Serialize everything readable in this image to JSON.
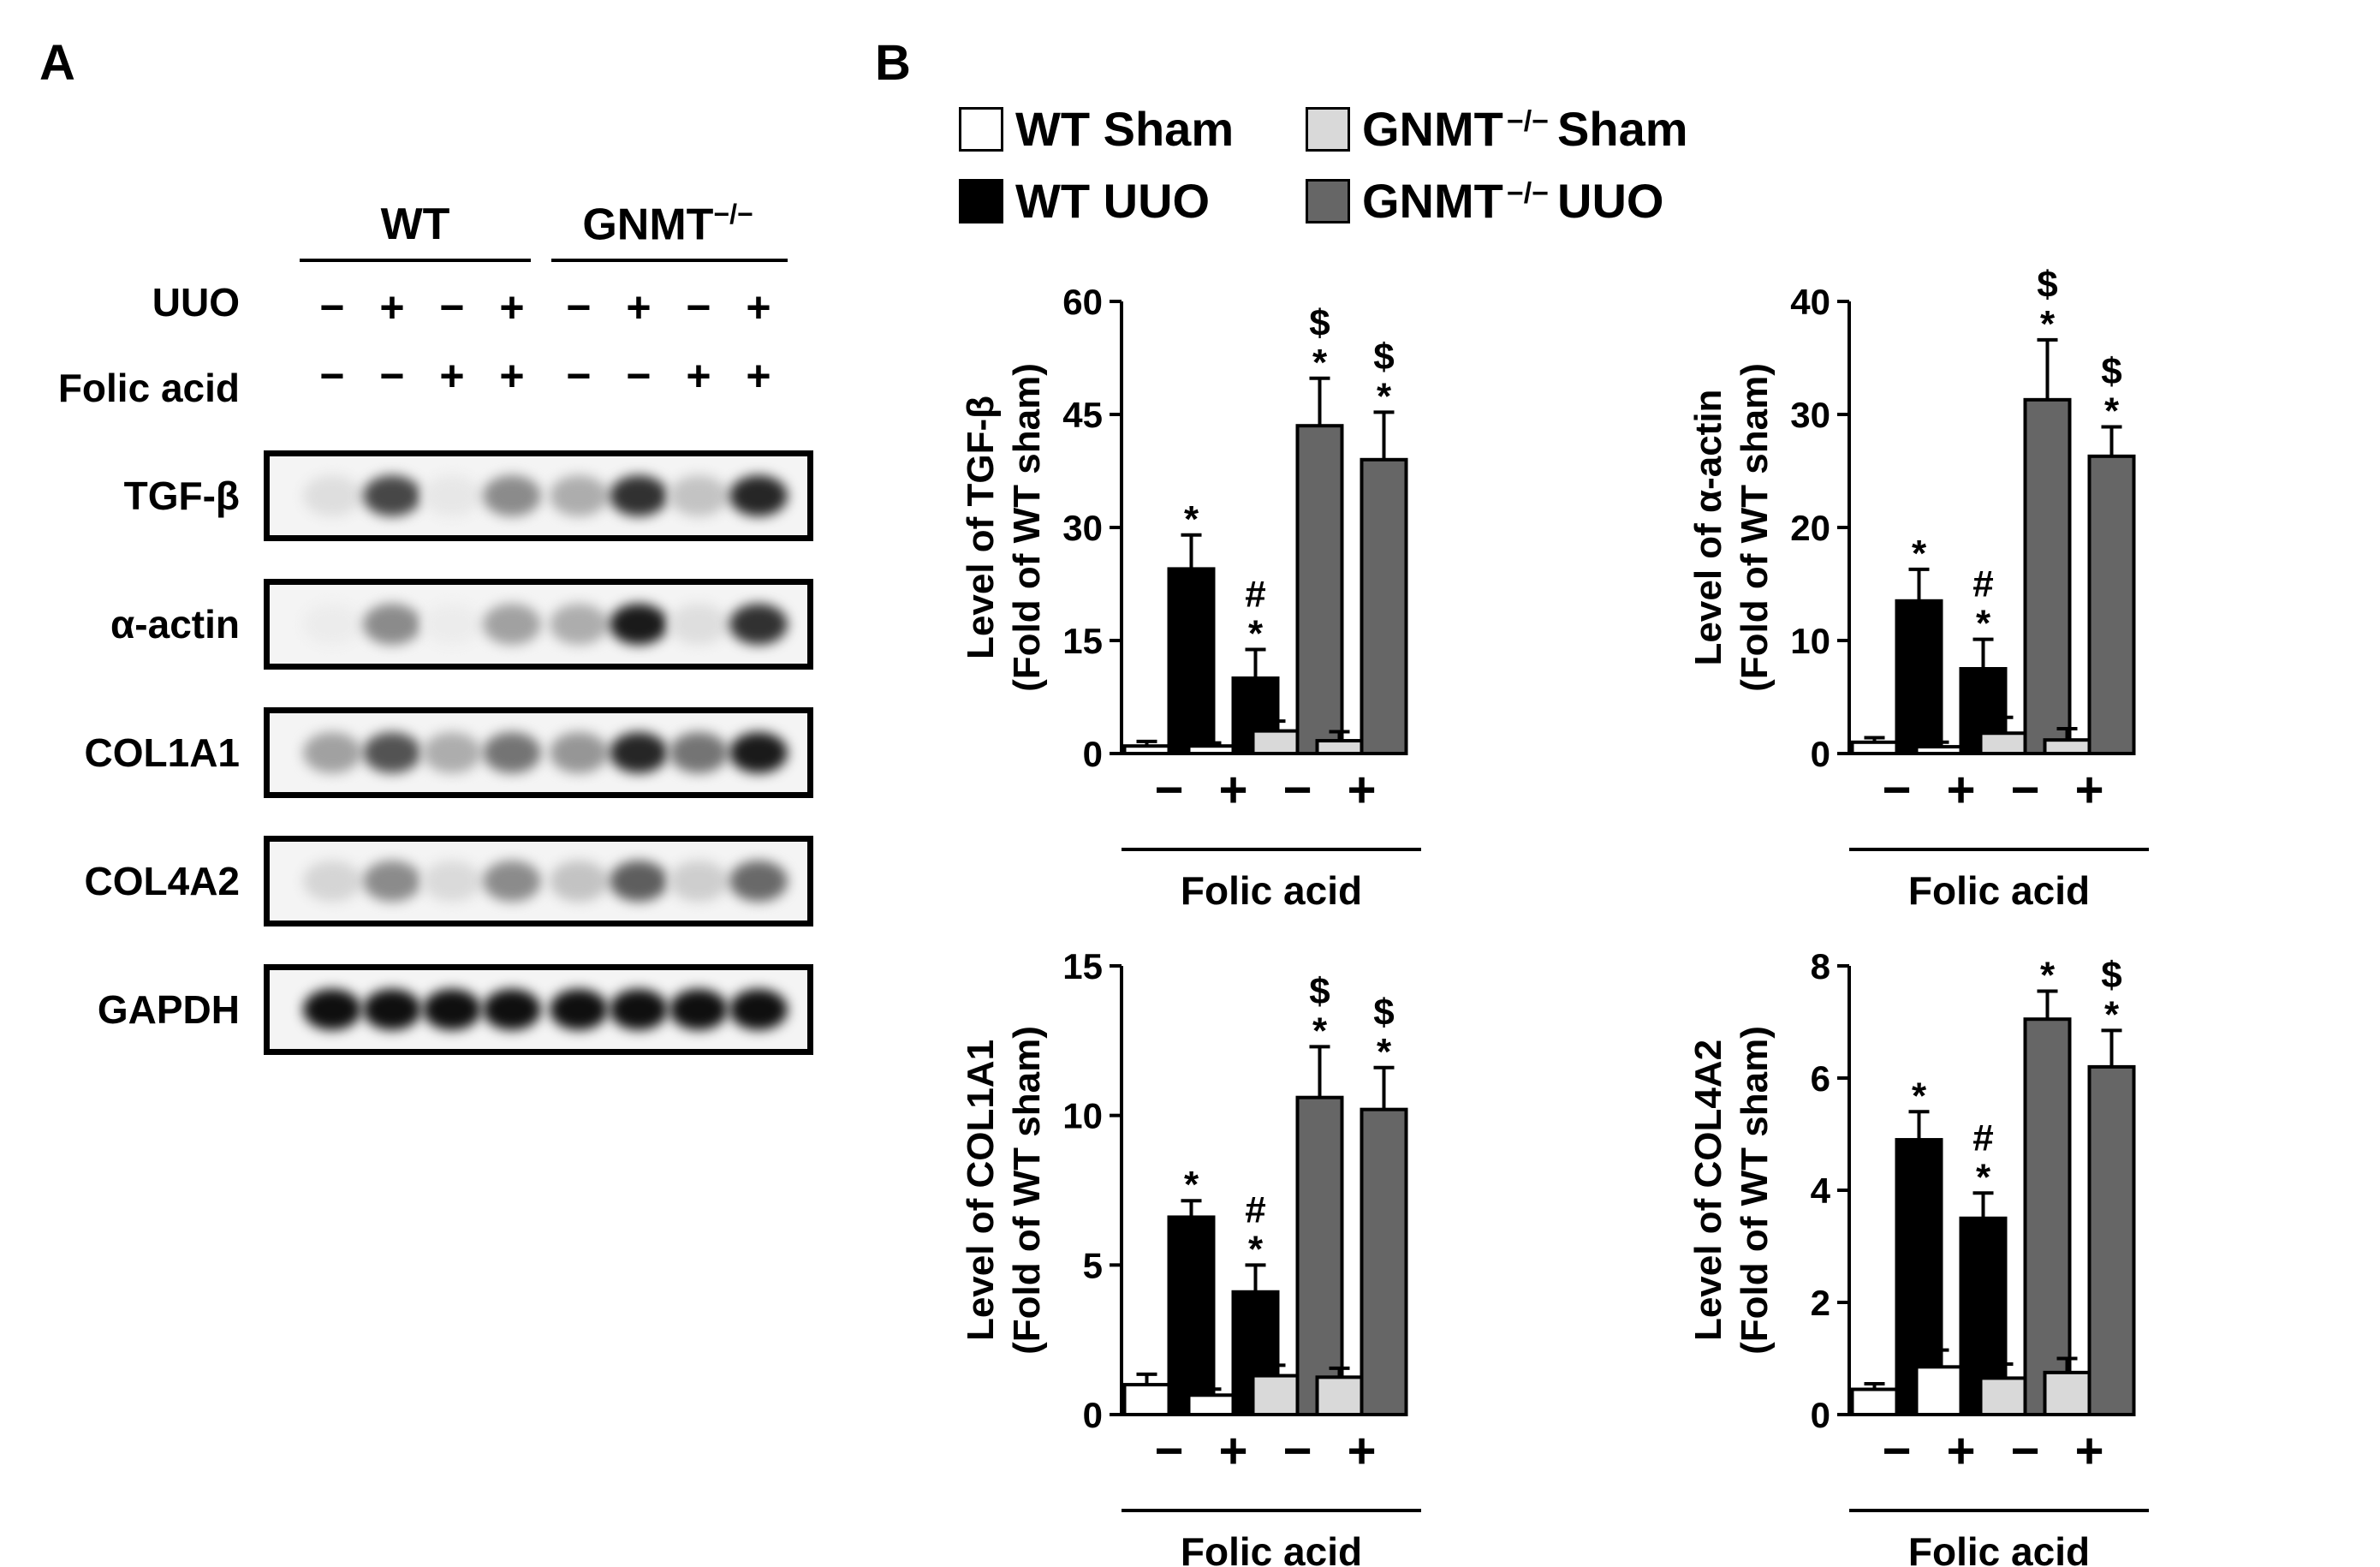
{
  "panel_a": {
    "letter": "A",
    "groups": [
      {
        "name": "WT",
        "sup": ""
      },
      {
        "name": "GNMT",
        "sup": "−/−"
      }
    ],
    "row_labels": {
      "uuo": "UUO",
      "folic": "Folic acid"
    },
    "uuo_signs": [
      "−",
      "+",
      "−",
      "+",
      "−",
      "+",
      "−",
      "+"
    ],
    "folic_signs": [
      "−",
      "−",
      "+",
      "+",
      "−",
      "−",
      "+",
      "+"
    ],
    "blots": [
      {
        "label": "TGF-β",
        "intensity": [
          0.08,
          0.75,
          0.04,
          0.45,
          0.3,
          0.85,
          0.2,
          0.9
        ]
      },
      {
        "label": "α-actin",
        "intensity": [
          0.02,
          0.45,
          0.02,
          0.35,
          0.3,
          0.95,
          0.08,
          0.85
        ]
      },
      {
        "label": "COL1A1",
        "intensity": [
          0.35,
          0.7,
          0.3,
          0.55,
          0.4,
          0.9,
          0.55,
          0.95
        ]
      },
      {
        "label": "COL4A2",
        "intensity": [
          0.12,
          0.45,
          0.1,
          0.45,
          0.2,
          0.65,
          0.15,
          0.6
        ]
      },
      {
        "label": "GAPDH",
        "intensity": [
          1,
          1,
          1,
          1,
          1,
          1,
          1,
          1
        ]
      }
    ]
  },
  "panel_b": {
    "letter": "B",
    "legend": [
      {
        "name": "WT Sham",
        "sup": "",
        "tail": "",
        "color": "#ffffff"
      },
      {
        "name": "GNMT",
        "sup": "−/−",
        "tail": "Sham",
        "color": "#d9d9d9"
      },
      {
        "name": "WT UUO",
        "sup": "",
        "tail": "",
        "color": "#000000"
      },
      {
        "name": "GNMT",
        "sup": "−/−",
        "tail": "UUO",
        "color": "#666666"
      }
    ]
  },
  "chart_data": [
    {
      "type": "bar",
      "ylabel_line1": "Level of TGF-β",
      "ylabel_line2": "(Fold of WT sham)",
      "xlabel": "Folic acid",
      "categories": [
        "−",
        "+",
        "−",
        "+"
      ],
      "ylim": [
        0,
        60
      ],
      "yticks": [
        0,
        15,
        30,
        45,
        60
      ],
      "series": [
        {
          "values": [
            1.0,
            1.0,
            3.0,
            1.7
          ],
          "errors": [
            0.6,
            0.4,
            1.3,
            1.2
          ],
          "color": "#ffffff"
        },
        {
          "values": [
            24.5,
            10.0,
            43.5,
            39.0
          ],
          "errors": [
            4.5,
            3.8,
            6.3,
            6.3
          ],
          "color": "#000000"
        }
      ],
      "annotations": [
        {
          "category": 0,
          "series": 1,
          "marks": [
            "*"
          ]
        },
        {
          "category": 1,
          "series": 1,
          "marks": [
            "#",
            "*"
          ]
        },
        {
          "category": 2,
          "series": 1,
          "marks": [
            "$",
            "*"
          ]
        },
        {
          "category": 3,
          "series": 1,
          "marks": [
            "$",
            "*"
          ]
        }
      ]
    },
    {
      "type": "bar",
      "ylabel_line1": "Level of α-actin",
      "ylabel_line2": "(Fold of WT sham)",
      "xlabel": "Folic acid",
      "categories": [
        "−",
        "+",
        "−",
        "+"
      ],
      "ylim": [
        0,
        40
      ],
      "yticks": [
        0,
        10,
        20,
        30,
        40
      ],
      "series": [
        {
          "values": [
            1.0,
            0.6,
            1.8,
            1.2
          ],
          "errors": [
            0.4,
            0.4,
            1.4,
            1.0
          ],
          "color": "#ffffff"
        },
        {
          "values": [
            13.5,
            7.5,
            31.3,
            26.3
          ],
          "errors": [
            2.8,
            2.6,
            5.3,
            2.6
          ],
          "color": "#000000"
        }
      ],
      "annotations": [
        {
          "category": 0,
          "series": 1,
          "marks": [
            "*"
          ]
        },
        {
          "category": 1,
          "series": 1,
          "marks": [
            "#",
            "*"
          ]
        },
        {
          "category": 2,
          "series": 1,
          "marks": [
            "$",
            "*"
          ]
        },
        {
          "category": 3,
          "series": 1,
          "marks": [
            "$",
            "*"
          ]
        }
      ]
    },
    {
      "type": "bar",
      "ylabel_line1": "Level of COL1A1",
      "ylabel_line2": "(Fold of WT sham)",
      "xlabel": "Folic acid",
      "categories": [
        "−",
        "+",
        "−",
        "+"
      ],
      "ylim": [
        0,
        15
      ],
      "yticks": [
        0,
        5,
        10,
        15
      ],
      "series": [
        {
          "values": [
            1.0,
            0.65,
            1.3,
            1.25
          ],
          "errors": [
            0.35,
            0.2,
            0.35,
            0.3
          ],
          "color": "#ffffff"
        },
        {
          "values": [
            6.6,
            4.1,
            10.6,
            10.2
          ],
          "errors": [
            0.55,
            0.9,
            1.7,
            1.4
          ],
          "color": "#000000"
        }
      ],
      "annotations": [
        {
          "category": 0,
          "series": 1,
          "marks": [
            "*"
          ]
        },
        {
          "category": 1,
          "series": 1,
          "marks": [
            "#",
            "*"
          ]
        },
        {
          "category": 2,
          "series": 1,
          "marks": [
            "$",
            "*"
          ]
        },
        {
          "category": 3,
          "series": 1,
          "marks": [
            "$",
            "*"
          ]
        }
      ]
    },
    {
      "type": "bar",
      "ylabel_line1": "Level of COL4A2",
      "ylabel_line2": "(Fold of WT sham)",
      "xlabel": "Folic acid",
      "categories": [
        "−",
        "+",
        "−",
        "+"
      ],
      "ylim": [
        0,
        8
      ],
      "yticks": [
        0,
        2,
        4,
        6,
        8
      ],
      "series": [
        {
          "values": [
            0.45,
            0.85,
            0.65,
            0.75
          ],
          "errors": [
            0.1,
            0.3,
            0.25,
            0.25
          ],
          "color": "#ffffff"
        },
        {
          "values": [
            4.9,
            3.5,
            7.05,
            6.2
          ],
          "errors": [
            0.5,
            0.45,
            0.5,
            0.65
          ],
          "color": "#000000"
        }
      ],
      "annotations": [
        {
          "category": 0,
          "series": 1,
          "marks": [
            "*"
          ]
        },
        {
          "category": 1,
          "series": 1,
          "marks": [
            "#",
            "*"
          ]
        },
        {
          "category": 2,
          "series": 1,
          "marks": [
            "*"
          ]
        },
        {
          "category": 3,
          "series": 1,
          "marks": [
            "$",
            "*"
          ]
        }
      ]
    }
  ]
}
